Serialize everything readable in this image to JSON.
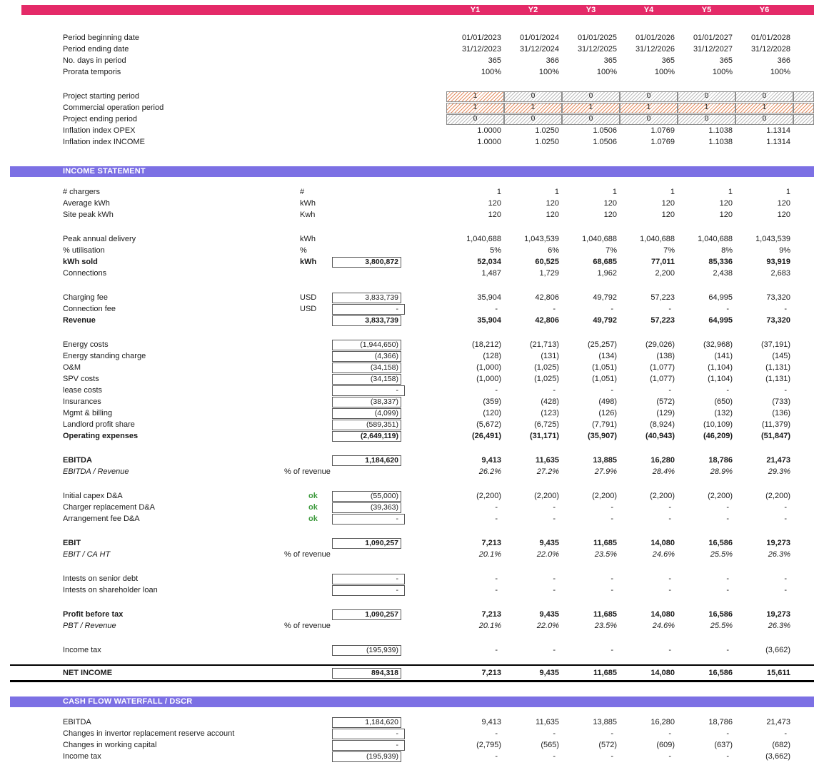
{
  "palette": {
    "header_pink": "#E42A68",
    "section_purple": "#7C70E4",
    "ok_green": "#3F9B3F",
    "flag_on_hatch": "#DD7038",
    "flag_off_hatch": "#9B9B9B"
  },
  "columns": [
    "Y1",
    "Y2",
    "Y3",
    "Y4",
    "Y5",
    "Y6"
  ],
  "sections": [
    {
      "id": "timeline",
      "title": "",
      "rows": [
        {
          "t": "sp",
          "h": 24
        },
        {
          "label": "Period beginning date",
          "values": [
            "01/01/2023",
            "01/01/2024",
            "01/01/2025",
            "01/01/2026",
            "01/01/2027",
            "01/01/2028"
          ]
        },
        {
          "label": "Period ending date",
          "values": [
            "31/12/2023",
            "31/12/2024",
            "31/12/2025",
            "31/12/2026",
            "31/12/2027",
            "31/12/2028"
          ]
        },
        {
          "label": "No. days in period",
          "values": [
            "365",
            "366",
            "365",
            "365",
            "365",
            "366"
          ]
        },
        {
          "label": "Prorata temporis",
          "values": [
            "100%",
            "100%",
            "100%",
            "100%",
            "100%",
            "100%"
          ]
        },
        {
          "t": "sp"
        },
        {
          "t": "flag",
          "label": "Project starting period",
          "values": [
            "1",
            "0",
            "0",
            "0",
            "0",
            "0"
          ],
          "overflow": "0"
        },
        {
          "t": "flag",
          "label": "Commercial operation period",
          "values": [
            "1",
            "1",
            "1",
            "1",
            "1",
            "1"
          ],
          "overflow": "1"
        },
        {
          "t": "flag",
          "label": "Project ending period",
          "values": [
            "0",
            "0",
            "0",
            "0",
            "0",
            "0"
          ],
          "overflow": "0"
        },
        {
          "label": "Inflation index OPEX",
          "values": [
            "1.0000",
            "1.0250",
            "1.0506",
            "1.0769",
            "1.1038",
            "1.1314"
          ]
        },
        {
          "label": "Inflation index INCOME",
          "values": [
            "1.0000",
            "1.0250",
            "1.0506",
            "1.0769",
            "1.1038",
            "1.1314"
          ]
        }
      ]
    },
    {
      "id": "income-statement",
      "title": "INCOME STATEMENT",
      "gap_before": 26,
      "rows": [
        {
          "label": "# chargers",
          "unit": "#",
          "values": [
            "1",
            "1",
            "1",
            "1",
            "1",
            "1"
          ]
        },
        {
          "label": "Average kWh",
          "unit": "kWh",
          "values": [
            "120",
            "120",
            "120",
            "120",
            "120",
            "120"
          ]
        },
        {
          "label": "Site peak kWh",
          "unit": "Kwh",
          "values": [
            "120",
            "120",
            "120",
            "120",
            "120",
            "120"
          ]
        },
        {
          "t": "sp"
        },
        {
          "label": "Peak annual delivery",
          "unit": "kWh",
          "values": [
            "1,040,688",
            "1,043,539",
            "1,040,688",
            "1,040,688",
            "1,040,688",
            "1,043,539"
          ]
        },
        {
          "label": "% utilisation",
          "unit": "%",
          "values": [
            "5%",
            "6%",
            "7%",
            "7%",
            "8%",
            "9%"
          ]
        },
        {
          "label": "kWh sold",
          "unit": "kWh",
          "b": true,
          "box": "3,800,872",
          "values": [
            "52,034",
            "60,525",
            "68,685",
            "77,011",
            "85,336",
            "93,919"
          ]
        },
        {
          "label": "Connections",
          "values": [
            "1,487",
            "1,729",
            "1,962",
            "2,200",
            "2,438",
            "2,683"
          ]
        },
        {
          "t": "sp"
        },
        {
          "label": "Charging fee",
          "unit": "USD",
          "box": "3,833,739",
          "values": [
            "35,904",
            "42,806",
            "49,792",
            "57,223",
            "64,995",
            "73,320"
          ]
        },
        {
          "label": "Connection fee",
          "unit": "USD",
          "box": "-",
          "values": [
            "-",
            "-",
            "-",
            "-",
            "-",
            "-"
          ]
        },
        {
          "label": "Revenue",
          "b": true,
          "box": "3,833,739",
          "values": [
            "35,904",
            "42,806",
            "49,792",
            "57,223",
            "64,995",
            "73,320"
          ]
        },
        {
          "t": "sp"
        },
        {
          "label": "Energy costs",
          "box": "(1,944,650)",
          "values": [
            "(18,212)",
            "(21,713)",
            "(25,257)",
            "(29,026)",
            "(32,968)",
            "(37,191)"
          ]
        },
        {
          "label": "Energy standing charge",
          "box": "(4,366)",
          "values": [
            "(128)",
            "(131)",
            "(134)",
            "(138)",
            "(141)",
            "(145)"
          ]
        },
        {
          "label": "O&M",
          "box": "(34,158)",
          "values": [
            "(1,000)",
            "(1,025)",
            "(1,051)",
            "(1,077)",
            "(1,104)",
            "(1,131)"
          ]
        },
        {
          "label": "SPV costs",
          "box": "(34,158)",
          "values": [
            "(1,000)",
            "(1,025)",
            "(1,051)",
            "(1,077)",
            "(1,104)",
            "(1,131)"
          ]
        },
        {
          "label": "lease costs",
          "box": "-",
          "values": [
            "-",
            "-",
            "-",
            "-",
            "-",
            "-"
          ]
        },
        {
          "label": "Insurances",
          "box": "(38,337)",
          "values": [
            "(359)",
            "(428)",
            "(498)",
            "(572)",
            "(650)",
            "(733)"
          ]
        },
        {
          "label": "Mgmt & billing",
          "box": "(4,099)",
          "values": [
            "(120)",
            "(123)",
            "(126)",
            "(129)",
            "(132)",
            "(136)"
          ]
        },
        {
          "label": "Landlord profit share",
          "box": "(589,351)",
          "values": [
            "(5,672)",
            "(6,725)",
            "(7,791)",
            "(8,924)",
            "(10,109)",
            "(11,379)"
          ]
        },
        {
          "label": "Operating expenses",
          "b": true,
          "box": "(2,649,119)",
          "values": [
            "(26,491)",
            "(31,171)",
            "(35,907)",
            "(40,943)",
            "(46,209)",
            "(51,847)"
          ]
        },
        {
          "t": "sp"
        },
        {
          "label": "EBITDA",
          "b": true,
          "box": "1,184,620",
          "values": [
            "9,413",
            "11,635",
            "13,885",
            "16,280",
            "18,786",
            "21,473"
          ]
        },
        {
          "label": "EBITDA / Revenue",
          "i": true,
          "unit": "% of revenue",
          "uwide": true,
          "values": [
            "26.2%",
            "27.2%",
            "27.9%",
            "28.4%",
            "28.9%",
            "29.3%"
          ]
        },
        {
          "t": "sp"
        },
        {
          "label": "Initial capex D&A",
          "ok": "ok",
          "box": "(55,000)",
          "values": [
            "(2,200)",
            "(2,200)",
            "(2,200)",
            "(2,200)",
            "(2,200)",
            "(2,200)"
          ]
        },
        {
          "label": "Charger replacement D&A",
          "ok": "ok",
          "box": "(39,363)",
          "values": [
            "-",
            "-",
            "-",
            "-",
            "-",
            "-"
          ]
        },
        {
          "label": "Arrangement fee D&A",
          "ok": "ok",
          "box": "-",
          "values": [
            "-",
            "-",
            "-",
            "-",
            "-",
            "-"
          ]
        },
        {
          "t": "sp"
        },
        {
          "label": "EBIT",
          "b": true,
          "box": "1,090,257",
          "values": [
            "7,213",
            "9,435",
            "11,685",
            "14,080",
            "16,586",
            "19,273"
          ]
        },
        {
          "label": "EBIT / CA HT",
          "i": true,
          "unit": "% of revenue",
          "uwide": true,
          "values": [
            "20.1%",
            "22.0%",
            "23.5%",
            "24.6%",
            "25.5%",
            "26.3%"
          ]
        },
        {
          "t": "sp"
        },
        {
          "label": "Intests on senior debt",
          "box": "-",
          "values": [
            "-",
            "-",
            "-",
            "-",
            "-",
            "-"
          ]
        },
        {
          "label": "Intests on shareholder loan",
          "box": "-",
          "values": [
            "-",
            "-",
            "-",
            "-",
            "-",
            "-"
          ]
        },
        {
          "t": "sp"
        },
        {
          "label": "Profit before tax",
          "b": true,
          "box": "1,090,257",
          "values": [
            "7,213",
            "9,435",
            "11,685",
            "14,080",
            "16,586",
            "19,273"
          ]
        },
        {
          "label": "PBT / Revenue",
          "i": true,
          "unit": "% of revenue",
          "uwide": true,
          "values": [
            "20.1%",
            "22.0%",
            "23.5%",
            "24.6%",
            "25.5%",
            "26.3%"
          ]
        },
        {
          "t": "sp"
        },
        {
          "label": "Income tax",
          "box": "(195,939)",
          "values": [
            "-",
            "-",
            "-",
            "-",
            "-",
            "(3,662)"
          ]
        },
        {
          "t": "sp",
          "h": 12
        },
        {
          "t": "net",
          "label": "NET INCOME",
          "b": true,
          "box": "894,318",
          "values": [
            "7,213",
            "9,435",
            "11,685",
            "14,080",
            "16,586",
            "15,611"
          ]
        }
      ]
    },
    {
      "id": "cash-flow-waterfall-dscr",
      "title": "CASH FLOW WATERFALL / DSCR",
      "gap_before": 20,
      "rows": [
        {
          "label": "EBITDA",
          "box": "1,184,620",
          "values": [
            "9,413",
            "11,635",
            "13,885",
            "16,280",
            "18,786",
            "21,473"
          ]
        },
        {
          "label": "Changes in invertor replacement reserve account",
          "box": "-",
          "values": [
            "-",
            "-",
            "-",
            "-",
            "-",
            "-"
          ]
        },
        {
          "label": "Changes in working capital",
          "box": "-",
          "values": [
            "(2,795)",
            "(565)",
            "(572)",
            "(609)",
            "(637)",
            "(682)"
          ]
        },
        {
          "label": "Income tax",
          "box": "(195,939)",
          "values": [
            "-",
            "-",
            "-",
            "-",
            "-",
            "(3,662)"
          ]
        }
      ]
    }
  ]
}
